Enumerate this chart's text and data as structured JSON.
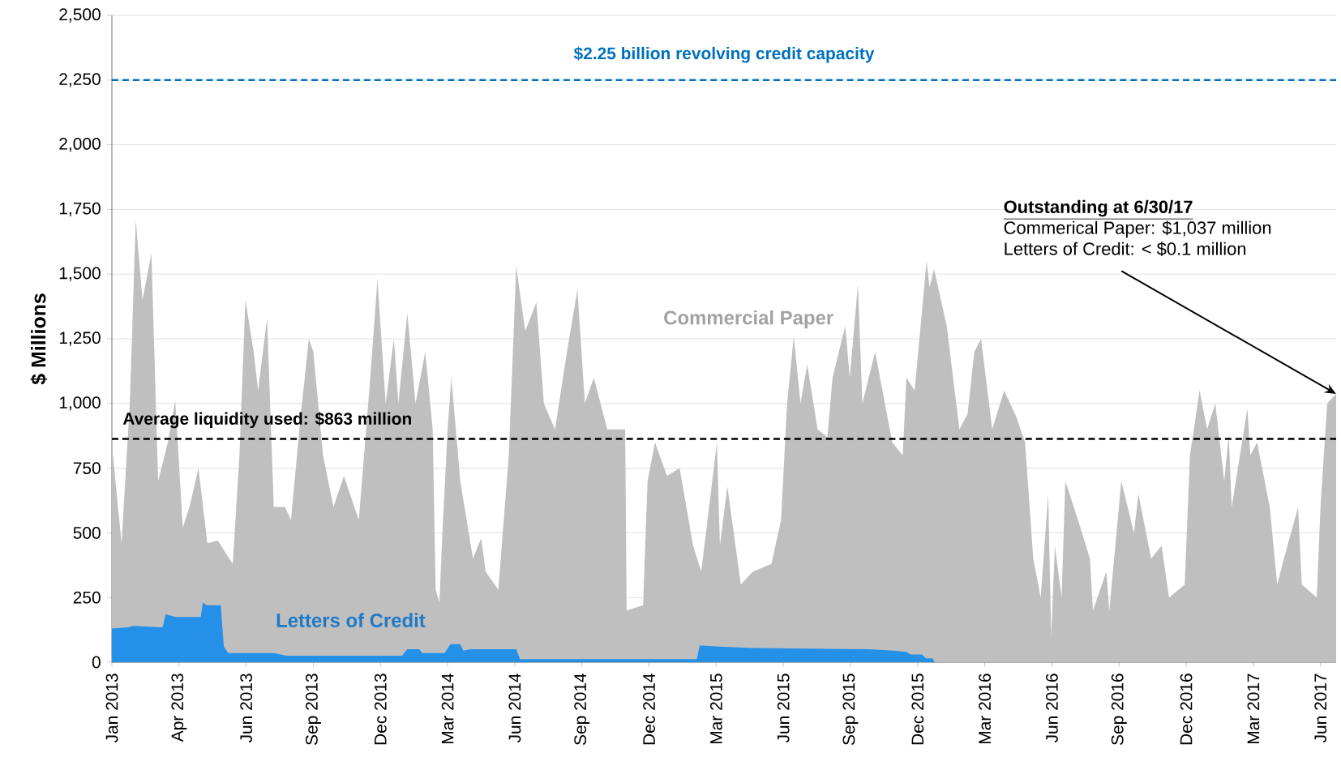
{
  "chart_data": {
    "type": "area",
    "ylabel": "$ Millions",
    "xlim": [
      "2013-01-01",
      "2017-06-30"
    ],
    "xticks": [
      {
        "value": "2013-01-01",
        "label": "Jan 2013"
      },
      {
        "value": "2013-04-01",
        "label": "Apr 2013"
      },
      {
        "value": "2013-06-30",
        "label": "Jun 2013"
      },
      {
        "value": "2013-09-28",
        "label": "Sep 2013"
      },
      {
        "value": "2013-12-27",
        "label": "Dec 2013"
      },
      {
        "value": "2014-03-27",
        "label": "Mar 2014"
      },
      {
        "value": "2014-06-25",
        "label": "Jun 2014"
      },
      {
        "value": "2014-09-23",
        "label": "Sep 2014"
      },
      {
        "value": "2014-12-22",
        "label": "Dec 2014"
      },
      {
        "value": "2015-03-22",
        "label": "Mar 2015"
      },
      {
        "value": "2015-06-20",
        "label": "Jun 2015"
      },
      {
        "value": "2015-09-18",
        "label": "Sep 2015"
      },
      {
        "value": "2015-12-17",
        "label": "Dec 2015"
      },
      {
        "value": "2016-03-16",
        "label": "Mar 2016"
      },
      {
        "value": "2016-06-14",
        "label": "Jun 2016"
      },
      {
        "value": "2016-09-12",
        "label": "Sep 2016"
      },
      {
        "value": "2016-12-11",
        "label": "Dec 2016"
      },
      {
        "value": "2017-03-11",
        "label": "Mar 2017"
      },
      {
        "value": "2017-06-09",
        "label": "Jun 2017"
      }
    ],
    "ylim": [
      0,
      2500
    ],
    "yticks": [
      0,
      250,
      500,
      750,
      {
        "value": 1000,
        "label": "1,000"
      },
      {
        "value": 1250,
        "label": "1,250"
      },
      {
        "value": 1500,
        "label": "1,500"
      },
      {
        "value": 1750,
        "label": "1,750"
      },
      {
        "value": 2000,
        "label": "2,000"
      },
      {
        "value": 2250,
        "label": "2,250"
      },
      {
        "value": 2500,
        "label": "2,500"
      }
    ],
    "grid": "y",
    "series": [
      {
        "name": "Commercial Paper",
        "color": "#bfbfbf",
        "x": [
          "2013-01-01",
          "2013-01-14",
          "2013-01-25",
          "2013-02-02",
          "2013-02-11",
          "2013-02-23",
          "2013-03-04",
          "2013-03-17",
          "2013-03-27",
          "2013-04-06",
          "2013-04-15",
          "2013-04-27",
          "2013-05-09",
          "2013-05-23",
          "2013-06-12",
          "2013-06-21",
          "2013-06-29",
          "2013-07-10",
          "2013-07-16",
          "2013-07-28",
          "2013-08-06",
          "2013-08-21",
          "2013-08-29",
          "2013-09-11",
          "2013-09-22",
          "2013-09-28",
          "2013-10-11",
          "2013-10-25",
          "2013-11-08",
          "2013-11-22",
          "2013-11-28",
          "2013-12-12",
          "2013-12-23",
          "2014-01-03",
          "2014-01-14",
          "2014-01-20",
          "2014-02-01",
          "2014-02-12",
          "2014-02-25",
          "2014-03-07",
          "2014-03-11",
          "2014-03-16",
          "2014-03-20",
          "2014-03-27",
          "2014-04-01",
          "2014-04-13",
          "2014-04-30",
          "2014-05-11",
          "2014-05-17",
          "2014-06-03",
          "2014-06-17",
          "2014-06-27",
          "2014-07-09",
          "2014-07-24",
          "2014-08-03",
          "2014-08-18",
          "2014-09-03",
          "2014-09-17",
          "2014-09-27",
          "2014-10-09",
          "2014-10-27",
          "2014-11-15",
          "2014-11-20",
          "2014-11-22",
          "2014-12-14",
          "2014-12-20",
          "2014-12-30",
          "2015-01-15",
          "2015-02-01",
          "2015-02-19",
          "2015-03-02",
          "2015-03-23",
          "2015-03-27",
          "2015-04-06",
          "2015-04-24",
          "2015-05-10",
          "2015-06-04",
          "2015-06-17",
          "2015-06-25",
          "2015-07-04",
          "2015-07-13",
          "2015-07-22",
          "2015-08-05",
          "2015-08-18",
          "2015-08-25",
          "2015-09-11",
          "2015-09-17",
          "2015-09-28",
          "2015-10-04",
          "2015-10-21",
          "2015-11-13",
          "2015-11-27",
          "2015-12-02",
          "2015-12-13",
          "2015-12-29",
          "2016-01-02",
          "2016-01-08",
          "2016-01-25",
          "2016-02-11",
          "2016-02-22",
          "2016-03-02",
          "2016-03-11",
          "2016-03-26",
          "2016-04-11",
          "2016-04-27",
          "2016-05-09",
          "2016-05-20",
          "2016-05-30",
          "2016-06-09",
          "2016-06-13",
          "2016-06-18",
          "2016-06-27",
          "2016-07-02",
          "2016-07-19",
          "2016-08-04",
          "2016-08-08",
          "2016-08-26",
          "2016-08-30",
          "2016-09-15",
          "2016-10-02",
          "2016-10-08",
          "2016-10-25",
          "2016-11-08",
          "2016-11-18",
          "2016-12-09",
          "2016-12-16",
          "2016-12-29",
          "2017-01-08",
          "2017-01-19",
          "2017-01-31",
          "2017-02-06",
          "2017-02-10",
          "2017-03-03",
          "2017-03-07",
          "2017-03-16",
          "2017-04-02",
          "2017-04-12",
          "2017-04-21",
          "2017-05-10",
          "2017-05-15",
          "2017-06-04",
          "2017-06-09",
          "2017-06-18",
          "2017-06-30"
        ],
        "values": [
          840,
          460,
          1000,
          1710,
          1400,
          1580,
          700,
          850,
          1010,
          520,
          600,
          750,
          460,
          470,
          380,
          800,
          1400,
          1200,
          1050,
          1330,
          600,
          600,
          550,
          950,
          1250,
          1200,
          800,
          600,
          720,
          600,
          550,
          1050,
          1480,
          1000,
          1250,
          1000,
          1350,
          1000,
          1200,
          900,
          280,
          230,
          500,
          900,
          1100,
          700,
          400,
          480,
          350,
          280,
          800,
          1530,
          1280,
          1390,
          1000,
          900,
          1200,
          1440,
          1000,
          1100,
          900,
          900,
          900,
          200,
          220,
          700,
          850,
          720,
          750,
          450,
          350,
          850,
          450,
          680,
          300,
          350,
          380,
          550,
          1000,
          1260,
          1000,
          1150,
          900,
          870,
          1100,
          1300,
          1100,
          1460,
          1000,
          1200,
          850,
          800,
          1100,
          1050,
          1550,
          1450,
          1520,
          1300,
          900,
          960,
          1200,
          1250,
          900,
          1050,
          950,
          850,
          400,
          250,
          650,
          100,
          450,
          250,
          700,
          550,
          400,
          200,
          350,
          200,
          700,
          500,
          650,
          400,
          450,
          250,
          300,
          800,
          1050,
          900,
          1000,
          700,
          880,
          600,
          980,
          800,
          850,
          600,
          300,
          400,
          600,
          300,
          250,
          600,
          1000,
          1037
        ]
      },
      {
        "name": "Letters of Credit",
        "color": "#2490e8",
        "x": [
          "2013-01-01",
          "2013-01-23",
          "2013-01-29",
          "2013-03-10",
          "2013-03-14",
          "2013-03-28",
          "2013-04-30",
          "2013-05-03",
          "2013-05-08",
          "2013-05-27",
          "2013-05-31",
          "2013-06-06",
          "2013-08-06",
          "2013-08-23",
          "2014-01-25",
          "2014-02-01",
          "2014-02-17",
          "2014-02-21",
          "2014-03-23",
          "2014-03-31",
          "2014-04-13",
          "2014-04-17",
          "2014-04-27",
          "2014-06-27",
          "2014-07-02",
          "2015-02-24",
          "2015-02-28",
          "2015-03-25",
          "2015-05-10",
          "2015-10-12",
          "2015-11-15",
          "2015-12-02",
          "2015-12-08",
          "2015-12-23",
          "2015-12-28",
          "2016-01-06",
          "2016-01-09",
          "2017-06-30"
        ],
        "values": [
          130,
          135,
          140,
          135,
          185,
          175,
          175,
          230,
          220,
          220,
          60,
          35,
          35,
          25,
          25,
          50,
          50,
          35,
          35,
          70,
          70,
          45,
          50,
          50,
          12,
          12,
          65,
          60,
          55,
          50,
          45,
          40,
          30,
          30,
          15,
          15,
          0,
          0
        ]
      }
    ],
    "ref_lines": [
      {
        "axis": "y",
        "value": 2250,
        "label": "$2.25 billion revolving credit capacity",
        "color": "#0070c0",
        "line_style": "dashed"
      },
      {
        "axis": "y",
        "value": 863,
        "label": "Average liquidity used: $863 million",
        "color": "#000000",
        "line_style": "dashed"
      }
    ],
    "annotations": [
      "Outstanding at 6/30/17",
      "Commerical Paper:  $1,037 million",
      {
        "text": "Letters of Credit:   < $0.1 million",
        "x": "2017-06-30",
        "y": 1037
      }
    ]
  }
}
